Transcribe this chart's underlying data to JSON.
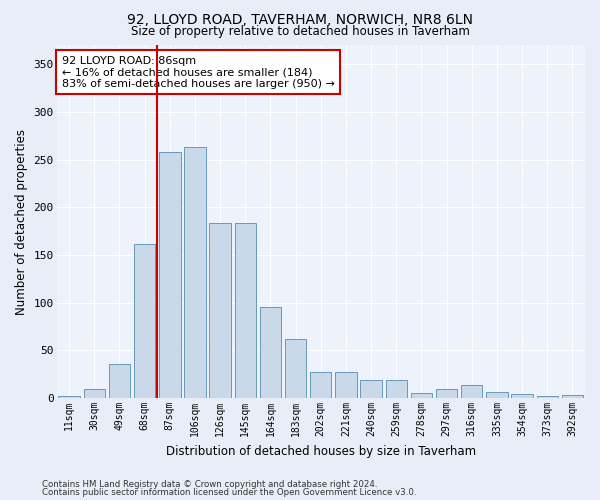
{
  "title1": "92, LLOYD ROAD, TAVERHAM, NORWICH, NR8 6LN",
  "title2": "Size of property relative to detached houses in Taverham",
  "xlabel": "Distribution of detached houses by size in Taverham",
  "ylabel": "Number of detached properties",
  "bar_labels": [
    "11sqm",
    "30sqm",
    "49sqm",
    "68sqm",
    "87sqm",
    "106sqm",
    "126sqm",
    "145sqm",
    "164sqm",
    "183sqm",
    "202sqm",
    "221sqm",
    "240sqm",
    "259sqm",
    "278sqm",
    "297sqm",
    "316sqm",
    "335sqm",
    "354sqm",
    "373sqm",
    "392sqm"
  ],
  "bar_values": [
    2,
    10,
    36,
    161,
    258,
    263,
    184,
    184,
    96,
    62,
    27,
    27,
    19,
    19,
    5,
    10,
    14,
    6,
    4,
    2,
    3
  ],
  "bar_color": "#c9d9ea",
  "bar_edge_color": "#6699bb",
  "vline_color": "#cc0000",
  "annotation_text": "92 LLOYD ROAD: 86sqm\n← 16% of detached houses are smaller (184)\n83% of semi-detached houses are larger (950) →",
  "annotation_box_color": "#ffffff",
  "annotation_box_edge": "#cc0000",
  "ylim": [
    0,
    370
  ],
  "yticks": [
    0,
    50,
    100,
    150,
    200,
    250,
    300,
    350
  ],
  "footer1": "Contains HM Land Registry data © Crown copyright and database right 2024.",
  "footer2": "Contains public sector information licensed under the Open Government Licence v3.0.",
  "bg_color": "#e8eef8",
  "plot_bg_color": "#eef2fa"
}
